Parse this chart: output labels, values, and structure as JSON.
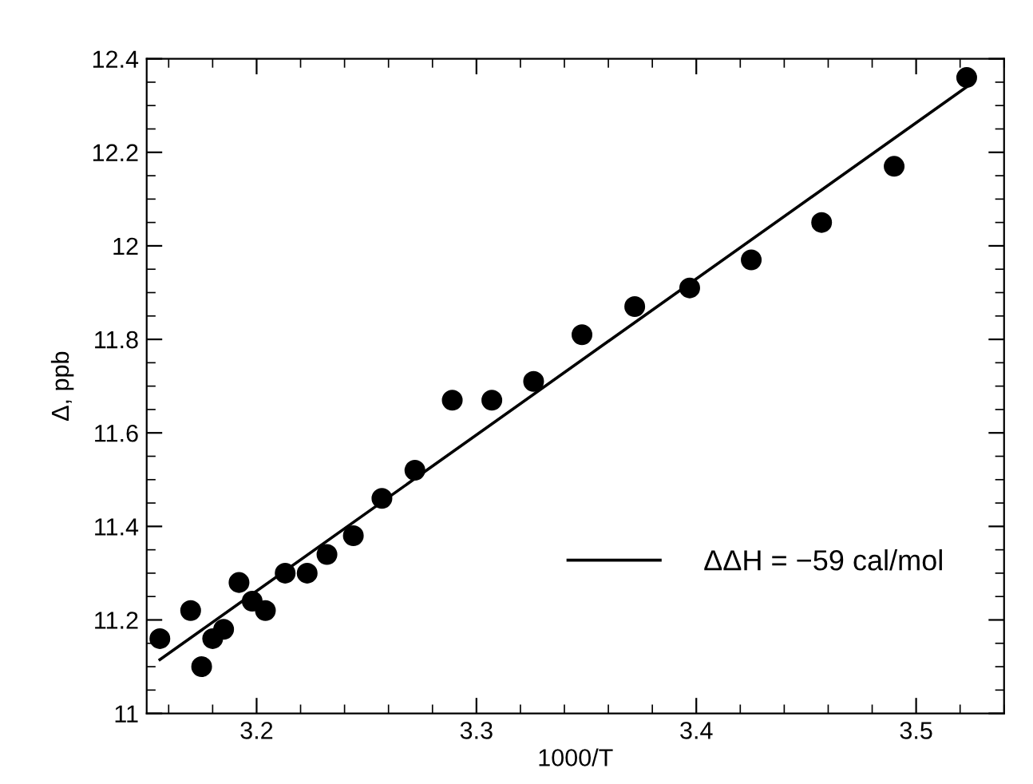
{
  "chart_data": {
    "type": "scatter",
    "xlabel": "1000/T",
    "ylabel": "Δ, ppb",
    "xlim": [
      3.15,
      3.54
    ],
    "xticks": [
      3.2,
      3.3,
      3.4,
      3.5
    ],
    "ylim": [
      11,
      12.4
    ],
    "yticks": [
      11,
      11.2,
      11.4,
      11.6,
      11.8,
      12,
      12.2,
      12.4
    ],
    "grid": false,
    "legend": "bottom right",
    "series": [
      {
        "marker": "circle",
        "color": "#000000",
        "x": [
          3.156,
          3.17,
          3.175,
          3.18,
          3.185,
          3.192,
          3.198,
          3.204,
          3.213,
          3.223,
          3.232,
          3.244,
          3.257,
          3.272,
          3.289,
          3.307,
          3.326,
          3.348,
          3.372,
          3.397,
          3.425,
          3.457,
          3.49,
          3.523
        ],
        "values": [
          11.16,
          11.22,
          11.1,
          11.16,
          11.18,
          11.28,
          11.24,
          11.22,
          11.3,
          11.3,
          11.34,
          11.38,
          11.46,
          11.52,
          11.67,
          11.67,
          11.71,
          11.81,
          11.87,
          11.91,
          11.97,
          12.05,
          12.17,
          12.36
        ]
      },
      {
        "type": "line",
        "name": "ΔΔH = −59 cal/mol",
        "color": "#000000",
        "line_style": "solid",
        "x": [
          3.156,
          3.523
        ],
        "values": [
          11.115,
          12.34
        ]
      }
    ]
  }
}
